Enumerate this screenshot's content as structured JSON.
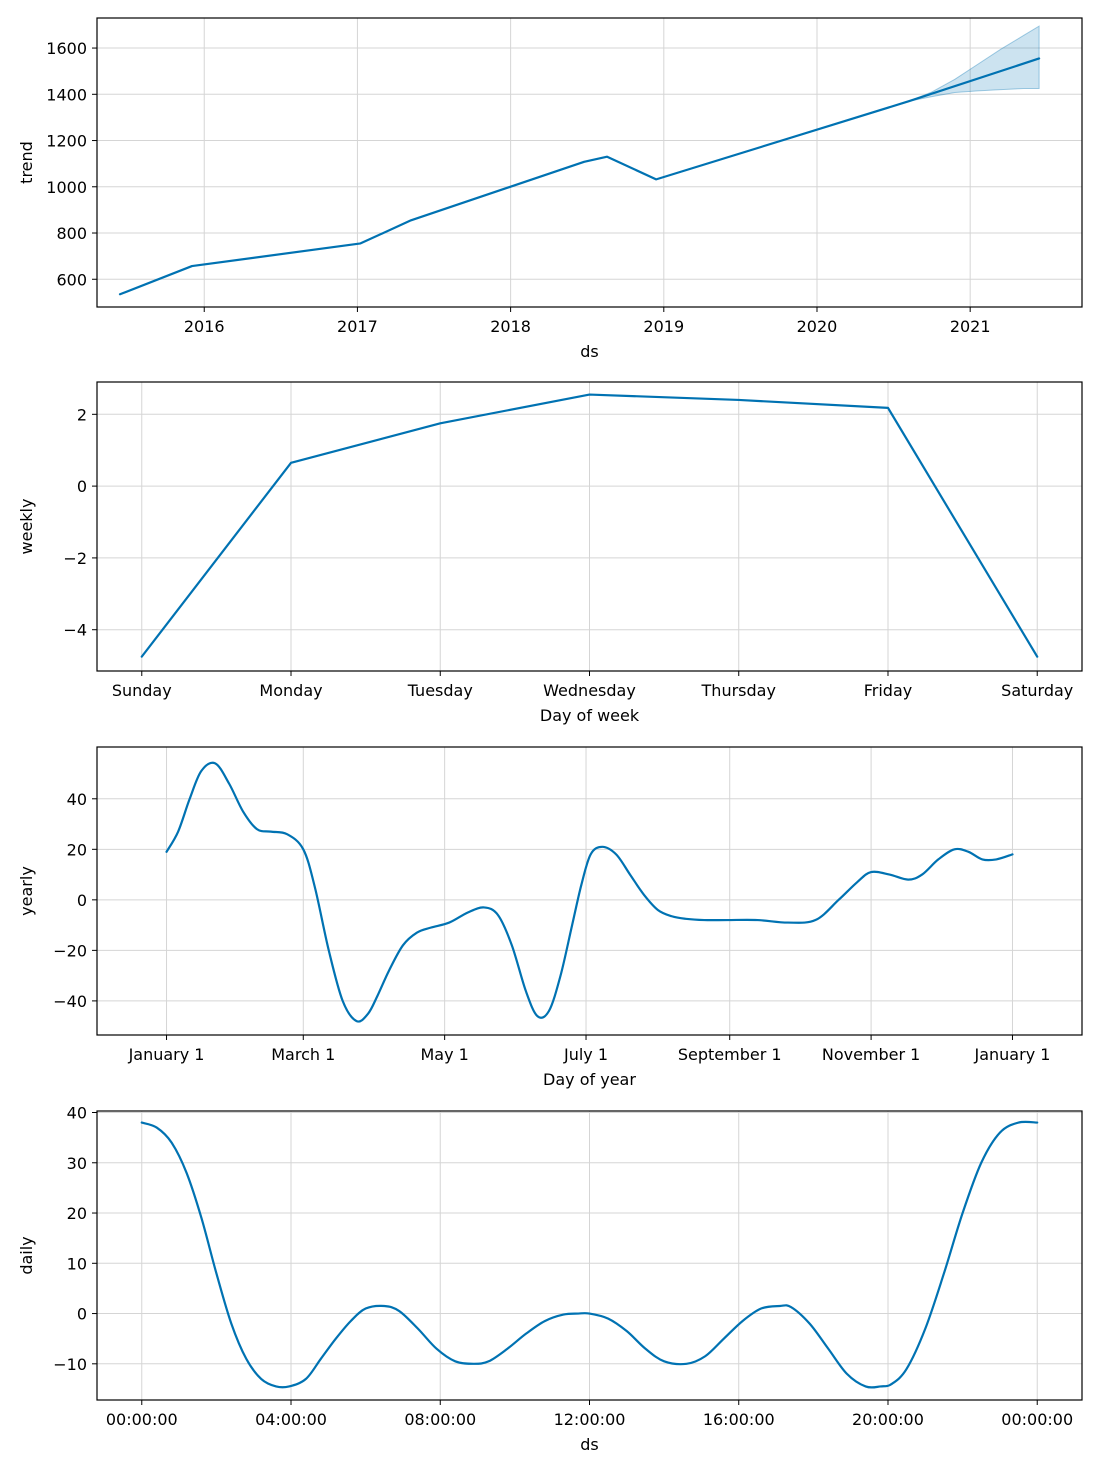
{
  "colors": {
    "line": "#0072B2",
    "band": "#0072B2",
    "grid": "#d5d5d5"
  },
  "chart_data": [
    {
      "name": "trend",
      "type": "line",
      "xlabel": "ds",
      "ylabel": "trend",
      "xlim": [
        2015.3,
        2021.73
      ],
      "ylim": [
        480,
        1730
      ],
      "xticks": [
        2016,
        2017,
        2018,
        2019,
        2020,
        2021
      ],
      "xticklabels": [
        "2016",
        "2017",
        "2018",
        "2019",
        "2020",
        "2021"
      ],
      "yticks": [
        600,
        800,
        1000,
        1200,
        1400,
        1600
      ],
      "yticklabels": [
        "600",
        "800",
        "1000",
        "1200",
        "1400",
        "1600"
      ],
      "series": [
        {
          "name": "trend",
          "x": [
            2015.45,
            2015.92,
            2017.02,
            2017.35,
            2018.48,
            2018.63,
            2018.95,
            2020.6,
            2021.45
          ],
          "y": [
            535,
            657,
            755,
            855,
            1108,
            1130,
            1032,
            1370,
            1555
          ]
        }
      ],
      "band": {
        "x": [
          2020.6,
          2020.75,
          2020.9,
          2021.05,
          2021.2,
          2021.35,
          2021.45
        ],
        "lower": [
          1370,
          1390,
          1408,
          1415,
          1420,
          1425,
          1425
        ],
        "upper": [
          1370,
          1410,
          1465,
          1530,
          1595,
          1655,
          1695
        ]
      }
    },
    {
      "name": "weekly",
      "type": "line",
      "xlabel": "Day of week",
      "ylabel": "weekly",
      "xlim": [
        -0.3,
        6.3
      ],
      "ylim": [
        -5.15,
        2.9
      ],
      "xticks": [
        0,
        1,
        2,
        3,
        4,
        5,
        6
      ],
      "xticklabels": [
        "Sunday",
        "Monday",
        "Tuesday",
        "Wednesday",
        "Thursday",
        "Friday",
        "Saturday"
      ],
      "yticks": [
        -4,
        -2,
        0,
        2
      ],
      "yticklabels": [
        "−4",
        "−2",
        "0",
        "2"
      ],
      "series": [
        {
          "name": "weekly",
          "x": [
            0,
            1,
            2,
            3,
            4,
            5,
            6
          ],
          "y": [
            -4.75,
            0.65,
            1.75,
            2.55,
            2.4,
            2.18,
            -4.75
          ]
        }
      ]
    },
    {
      "name": "yearly",
      "type": "line",
      "xlabel": "Day of year",
      "ylabel": "yearly",
      "xlim": [
        -30,
        395
      ],
      "ylim": [
        -53.5,
        60.5
      ],
      "xticks": [
        0,
        59,
        120,
        181,
        243,
        304,
        365
      ],
      "xticklabels": [
        "January 1",
        "March 1",
        "May 1",
        "July 1",
        "September 1",
        "November 1",
        "January 1"
      ],
      "yticks": [
        -40,
        -20,
        0,
        20,
        40
      ],
      "yticklabels": [
        "−40",
        "−20",
        "0",
        "20",
        "40"
      ],
      "series": [
        {
          "name": "yearly",
          "x": [
            0,
            5,
            10,
            15,
            21,
            27,
            33,
            39,
            45,
            52,
            59,
            64,
            70,
            76,
            82,
            87,
            91,
            96,
            102,
            108,
            114,
            122,
            130,
            137,
            143,
            149,
            155,
            160,
            165,
            170,
            175,
            179,
            183,
            188,
            194,
            200,
            206,
            212,
            218,
            224,
            232,
            242,
            255,
            268,
            280,
            290,
            298,
            304,
            312,
            320,
            326,
            333,
            340,
            346,
            352,
            358,
            365
          ],
          "y": [
            19,
            27,
            40,
            51,
            54,
            46,
            35,
            28,
            27,
            26,
            20,
            5,
            -20,
            -40,
            -48,
            -45,
            -38,
            -28,
            -18,
            -13,
            -11,
            -9,
            -5,
            -3,
            -6,
            -18,
            -36,
            -46,
            -44,
            -30,
            -10,
            6,
            18,
            21,
            18,
            10,
            2,
            -4,
            -6.5,
            -7.5,
            -8,
            -8,
            -8,
            -9,
            -8,
            0,
            7,
            11,
            10,
            8,
            10,
            16,
            20,
            19,
            16,
            16,
            18
          ]
        }
      ]
    },
    {
      "name": "daily",
      "type": "line",
      "xlabel": "ds",
      "ylabel": "daily",
      "xlim": [
        -1.2,
        25.2
      ],
      "ylim": [
        -17.2,
        40.3
      ],
      "xticks": [
        0,
        4,
        8,
        12,
        16,
        20,
        24
      ],
      "xticklabels": [
        "00:00:00",
        "04:00:00",
        "08:00:00",
        "12:00:00",
        "16:00:00",
        "20:00:00",
        "00:00:00"
      ],
      "yticks": [
        -10,
        0,
        10,
        20,
        30,
        40
      ],
      "yticklabels": [
        "−10",
        "0",
        "10",
        "20",
        "30",
        "40"
      ],
      "series": [
        {
          "name": "daily",
          "x": [
            0,
            0.4,
            0.8,
            1.2,
            1.6,
            2.0,
            2.4,
            2.8,
            3.2,
            3.6,
            3.95,
            4.4,
            4.8,
            5.2,
            5.6,
            6.0,
            6.5,
            6.9,
            7.4,
            7.9,
            8.4,
            8.9,
            9.3,
            9.8,
            10.3,
            10.8,
            11.3,
            11.7,
            12.0,
            12.5,
            13.0,
            13.5,
            14.0,
            14.6,
            15.1,
            15.6,
            16.1,
            16.6,
            17.1,
            17.4,
            17.9,
            18.4,
            18.9,
            19.4,
            19.8,
            20.1,
            20.5,
            21.0,
            21.5,
            22.0,
            22.5,
            23.0,
            23.5,
            24.0
          ],
          "y": [
            38,
            37,
            34,
            28,
            19,
            8,
            -2,
            -9,
            -13,
            -14.5,
            -14.5,
            -13,
            -9,
            -5,
            -1.5,
            1,
            1.5,
            0.5,
            -3,
            -7,
            -9.5,
            -10,
            -9.5,
            -7,
            -4,
            -1.5,
            -0.2,
            0,
            0,
            -1,
            -3.5,
            -7,
            -9.5,
            -10,
            -8.5,
            -5,
            -1.5,
            1,
            1.5,
            1.3,
            -2,
            -7,
            -12,
            -14.5,
            -14.5,
            -14,
            -11,
            -3,
            8,
            20,
            30,
            36,
            38,
            38
          ]
        }
      ]
    }
  ]
}
